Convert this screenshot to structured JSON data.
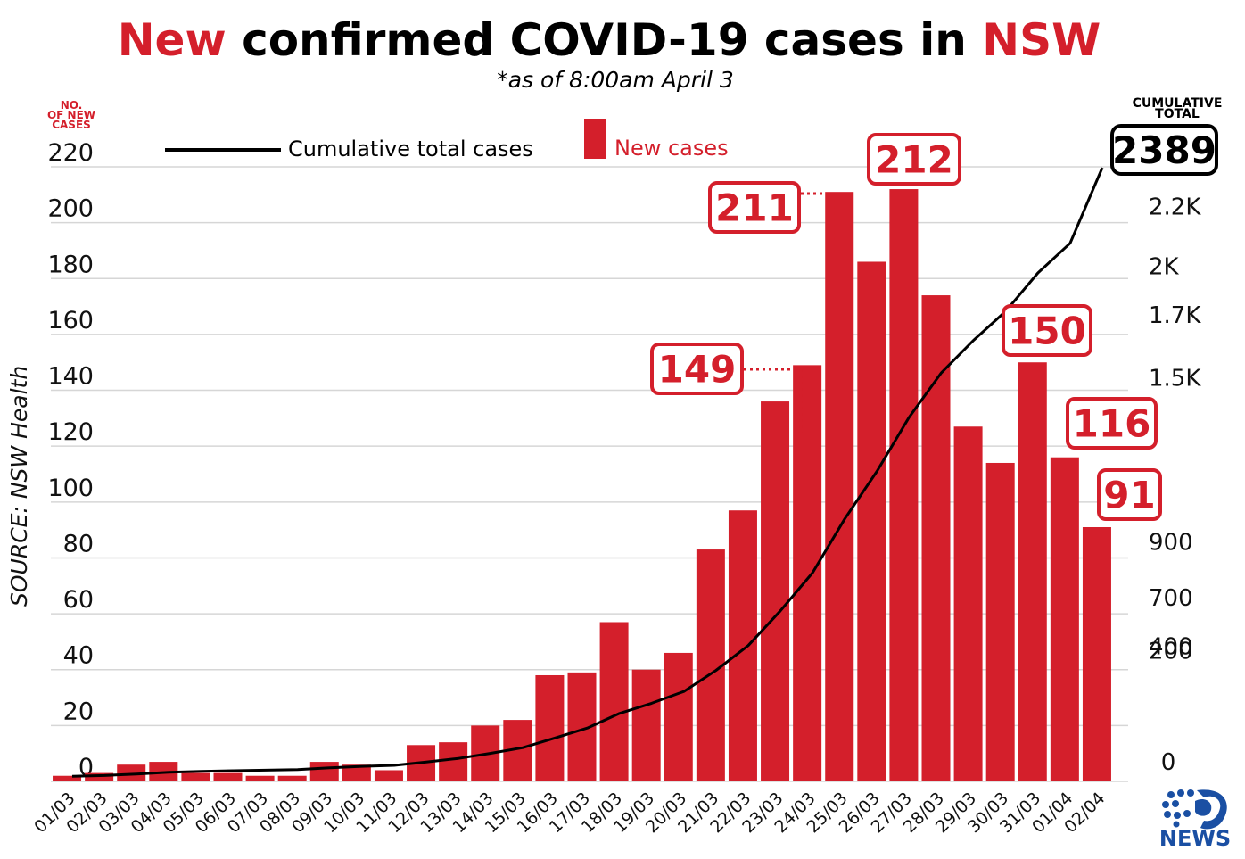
{
  "title": {
    "part1": "New",
    "part2": " confirmed COVID-19 cases in ",
    "part3": "NSW"
  },
  "subtitle": "*as of 8:00am April 3",
  "left_axis_label": [
    "NO.",
    "OF NEW",
    "CASES"
  ],
  "right_axis_label": [
    "CUMULATIVE",
    "TOTAL"
  ],
  "source": "SOURCE: NSW Health",
  "logo": {
    "text": "NEWS"
  },
  "colors": {
    "bar": "#d41f2b",
    "line": "#000000",
    "accent": "#d41f2b",
    "grid": "#d6d6d6"
  },
  "chart_data": {
    "type": "bar",
    "title": "New confirmed COVID-19 cases in NSW",
    "categories": [
      "01/03",
      "02/03",
      "03/03",
      "04/03",
      "05/03",
      "06/03",
      "07/03",
      "08/03",
      "09/03",
      "10/03",
      "11/03",
      "12/03",
      "13/03",
      "14/03",
      "15/03",
      "16/03",
      "17/03",
      "18/03",
      "19/03",
      "20/03",
      "21/03",
      "22/03",
      "23/03",
      "24/03",
      "25/03",
      "26/03",
      "27/03",
      "28/03",
      "29/03",
      "30/03",
      "31/03",
      "01/04",
      "02/04"
    ],
    "series": [
      {
        "name": "New cases",
        "axis": "left",
        "values": [
          2,
          3,
          6,
          7,
          3,
          3,
          2,
          2,
          7,
          6,
          4,
          13,
          14,
          20,
          22,
          38,
          39,
          57,
          40,
          46,
          83,
          97,
          136,
          149,
          211,
          186,
          212,
          174,
          127,
          114,
          150,
          116,
          91
        ]
      },
      {
        "name": "Cumulative total cases",
        "axis": "right",
        "type": "line",
        "values": [
          6,
          9,
          15,
          22,
          25,
          28,
          30,
          32,
          39,
          45,
          49,
          62,
          76,
          96,
          118,
          156,
          195,
          252,
          292,
          338,
          421,
          518,
          654,
          803,
          1014,
          1200,
          1412,
          1586,
          1713,
          1827,
          1977,
          2093,
          2389
        ]
      }
    ],
    "ylim": [
      0,
      220
    ],
    "yticks": [
      0,
      20,
      40,
      60,
      80,
      100,
      120,
      140,
      160,
      180,
      200,
      220
    ],
    "y2ticks": [
      "0",
      "200",
      "400",
      "700",
      "900",
      "1.5K",
      "1.7K",
      "2K",
      "2.2K"
    ],
    "callouts": [
      {
        "category": "24/03",
        "value": "149"
      },
      {
        "category": "25/03",
        "value": "211"
      },
      {
        "category": "27/03",
        "value": "212"
      },
      {
        "category": "31/03",
        "value": "150"
      },
      {
        "category": "01/04",
        "value": "116"
      },
      {
        "category": "02/04",
        "value": "91"
      }
    ],
    "cumulative_callout": "2389",
    "legend": [
      "Cumulative total cases",
      "New cases"
    ],
    "grid": true,
    "legend_position": "top"
  }
}
